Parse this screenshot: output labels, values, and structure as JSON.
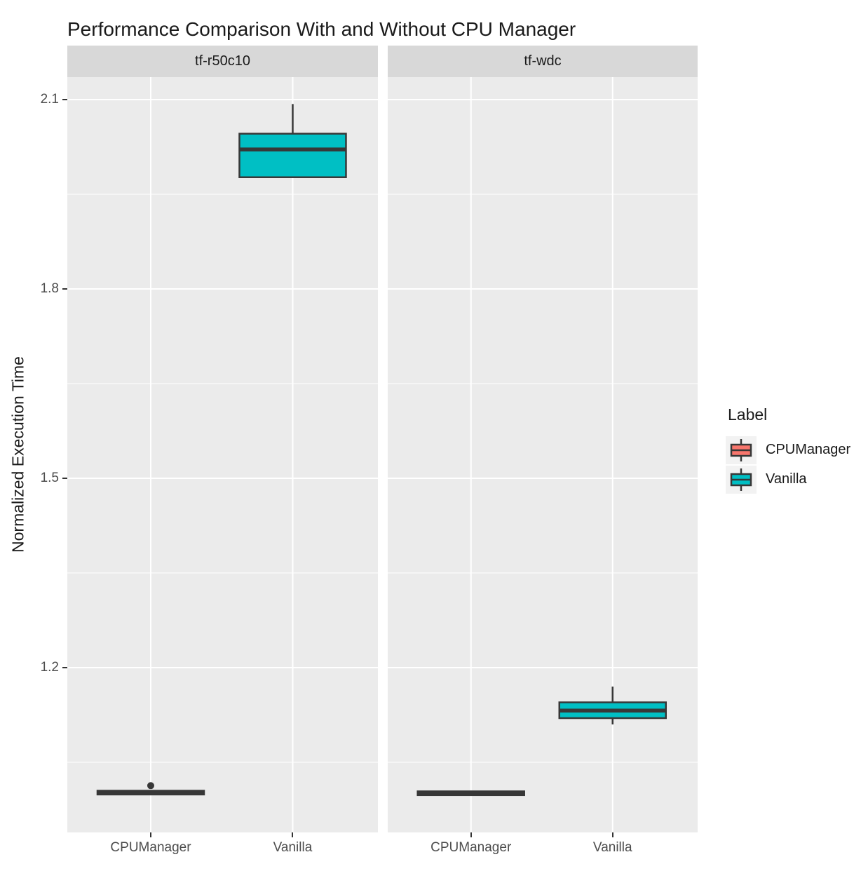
{
  "title": "Performance Comparison With and Without CPU Manager",
  "colors": {
    "panel_background": "#ebebeb",
    "strip_background": "#d8d8d8",
    "gridline": "#ffffff",
    "box_outline": "#373737",
    "tick_text": "#4d4d4d",
    "text": "#1a1a1a",
    "cpumanager_fill": "#F8766D",
    "vanilla_fill": "#00BFC4"
  },
  "legend": {
    "title": "Label",
    "position": "right",
    "items": [
      {
        "label": "CPUManager",
        "color": "#F8766D",
        "glyph": "boxplot-key-icon"
      },
      {
        "label": "Vanilla",
        "color": "#00BFC4",
        "glyph": "boxplot-key-icon"
      }
    ]
  },
  "axis": {
    "y": {
      "label": "Normalized Execution Time",
      "ticks": [
        2.1,
        1.8,
        1.5,
        1.2
      ],
      "minor_gridlines": [
        1.95,
        1.65,
        1.35,
        1.05
      ],
      "lim": [
        0.9389,
        2.1356
      ]
    },
    "x": {
      "categories": [
        "CPUManager",
        "Vanilla"
      ]
    }
  },
  "chart_data": {
    "type": "boxplot",
    "title": "Performance Comparison With and Without CPU Manager",
    "xlabel": "",
    "ylabel": "Normalized Execution Time",
    "ylim": [
      0.9389,
      2.1356
    ],
    "grid": "on",
    "legend_position": "right",
    "facets": [
      {
        "label": "tf-r50c10",
        "boxes": [
          {
            "group": "CPUManager",
            "color": "#F8766D",
            "whisker_low": 0.998,
            "q1": 0.999,
            "median": 1.002,
            "q3": 1.005,
            "whisker_high": 1.006,
            "outliers": [
              1.013
            ]
          },
          {
            "group": "Vanilla",
            "color": "#00BFC4",
            "whisker_low": 1.977,
            "q1": 1.977,
            "median": 2.021,
            "q3": 2.046,
            "whisker_high": 2.093,
            "outliers": []
          }
        ]
      },
      {
        "label": "tf-wdc",
        "boxes": [
          {
            "group": "CPUManager",
            "color": "#F8766D",
            "whisker_low": 0.997,
            "q1": 0.998,
            "median": 1.001,
            "q3": 1.004,
            "whisker_high": 1.005,
            "outliers": []
          },
          {
            "group": "Vanilla",
            "color": "#00BFC4",
            "whisker_low": 1.11,
            "q1": 1.12,
            "median": 1.132,
            "q3": 1.145,
            "whisker_high": 1.17,
            "outliers": []
          }
        ]
      }
    ]
  }
}
